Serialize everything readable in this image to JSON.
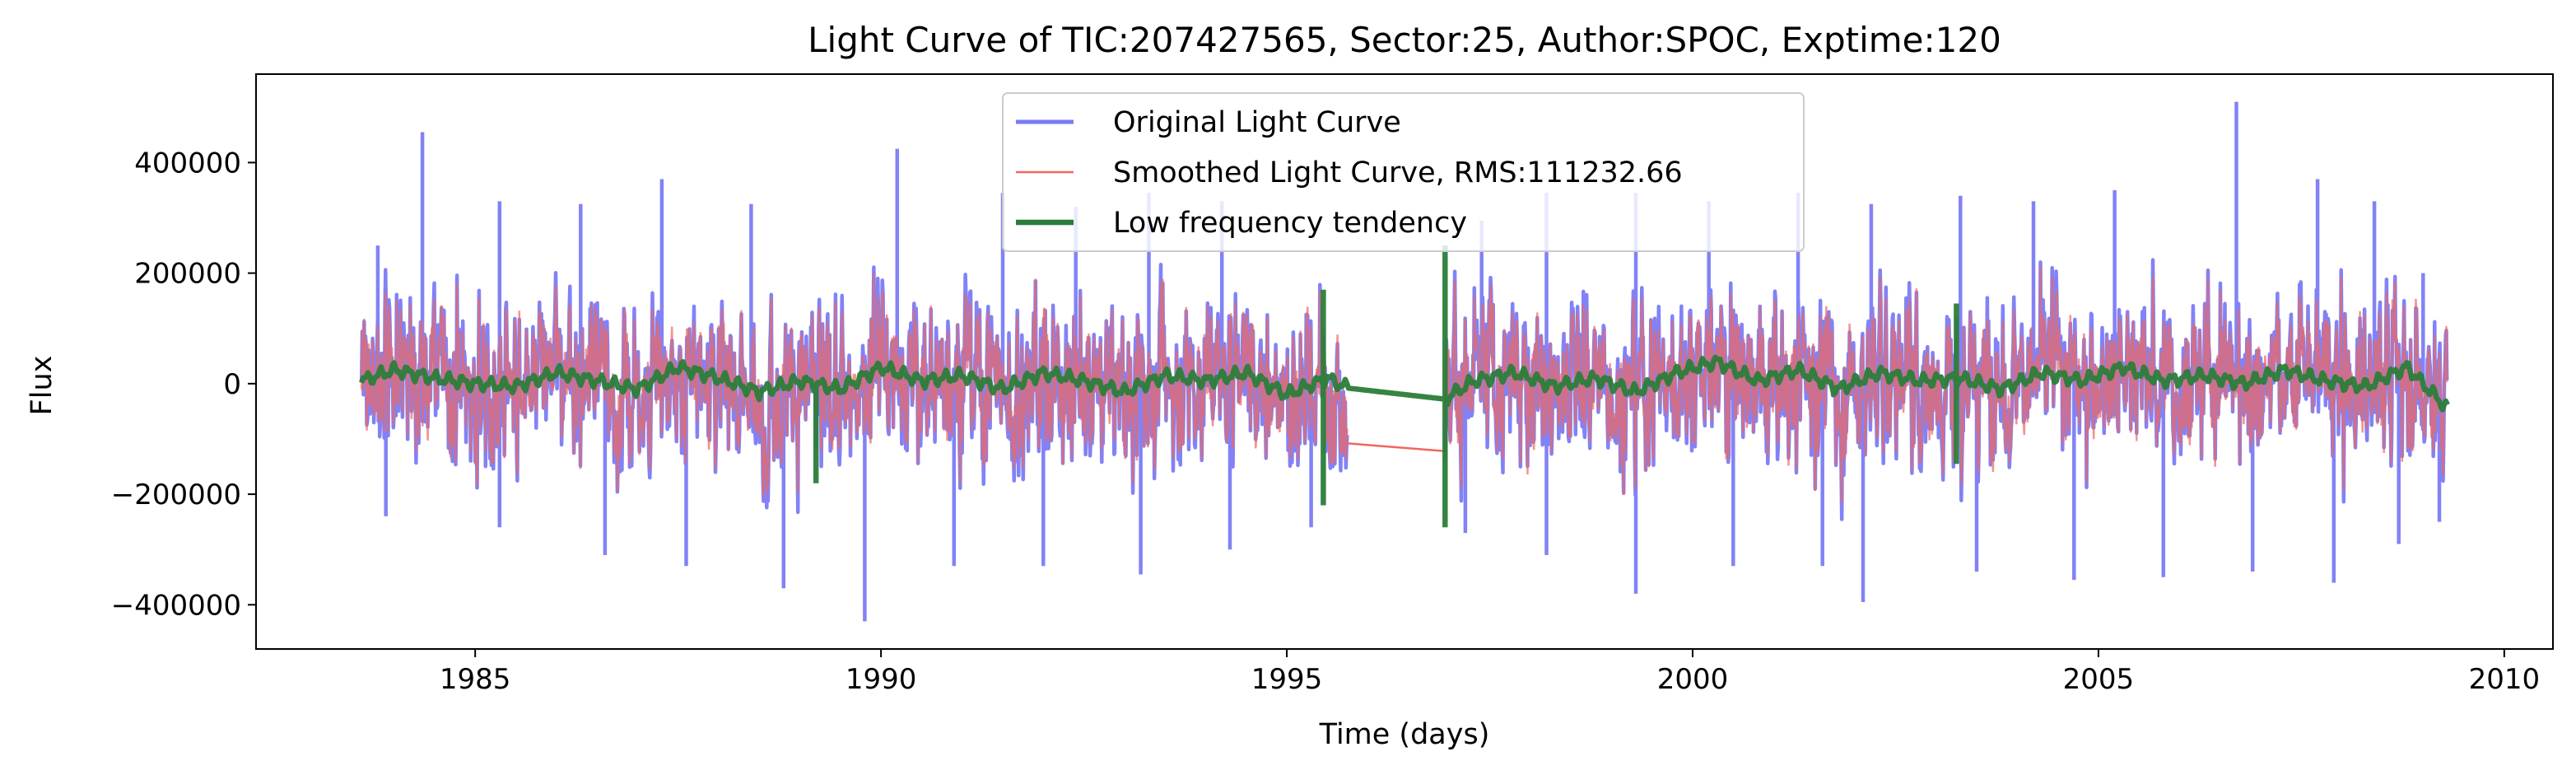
{
  "chart_data": {
    "type": "line",
    "title": "Light Curve of TIC:207427565, Sector:25, Author:SPOC, Exptime:120",
    "xlabel": "Time (days)",
    "ylabel": "Flux",
    "xlim": [
      1982.3,
      2010.6
    ],
    "ylim": [
      -480000,
      560000
    ],
    "xticks": [
      1985,
      1990,
      1995,
      2000,
      2005,
      2010
    ],
    "yticks": [
      -400000,
      -200000,
      0,
      200000,
      400000
    ],
    "xtick_labels": [
      "1985",
      "1990",
      "1995",
      "2000",
      "2005",
      "2010"
    ],
    "ytick_labels": [
      "−400000",
      "−200000",
      "0",
      "200000",
      "400000"
    ],
    "grid": false,
    "legend_position": "top-center",
    "segments": [
      [
        1983.6,
        1995.75
      ],
      [
        1996.95,
        2009.3
      ]
    ],
    "series": [
      {
        "name": "Original Light Curve",
        "role": "original",
        "color": "#7b7bf5",
        "typical_amplitude": 130000,
        "envelope": {
          "min": -430000,
          "max": 510000
        },
        "peaks": [
          {
            "x": 1983.8,
            "y": 250000
          },
          {
            "x": 1984.35,
            "y": 455000
          },
          {
            "x": 1985.3,
            "y": 330000
          },
          {
            "x": 1986.3,
            "y": 325000
          },
          {
            "x": 1987.3,
            "y": 370000
          },
          {
            "x": 1988.4,
            "y": 325000
          },
          {
            "x": 1990.2,
            "y": 425000
          },
          {
            "x": 1991.5,
            "y": 345000
          },
          {
            "x": 1992.4,
            "y": 320000
          },
          {
            "x": 1993.3,
            "y": 345000
          },
          {
            "x": 1994.2,
            "y": 330000
          },
          {
            "x": 1997.4,
            "y": 295000
          },
          {
            "x": 1998.2,
            "y": 345000
          },
          {
            "x": 1999.3,
            "y": 345000
          },
          {
            "x": 2000.2,
            "y": 330000
          },
          {
            "x": 2001.3,
            "y": 345000
          },
          {
            "x": 2002.2,
            "y": 325000
          },
          {
            "x": 2003.3,
            "y": 340000
          },
          {
            "x": 2004.2,
            "y": 330000
          },
          {
            "x": 2005.2,
            "y": 350000
          },
          {
            "x": 2006.7,
            "y": 510000
          },
          {
            "x": 2007.7,
            "y": 370000
          },
          {
            "x": 2008.4,
            "y": 330000
          },
          {
            "x": 2009.0,
            "y": 200000
          }
        ],
        "troughs": [
          {
            "x": 1983.9,
            "y": -240000
          },
          {
            "x": 1985.3,
            "y": -260000
          },
          {
            "x": 1986.6,
            "y": -310000
          },
          {
            "x": 1987.6,
            "y": -330000
          },
          {
            "x": 1988.8,
            "y": -370000
          },
          {
            "x": 1989.8,
            "y": -430000
          },
          {
            "x": 1990.9,
            "y": -330000
          },
          {
            "x": 1992.0,
            "y": -330000
          },
          {
            "x": 1993.2,
            "y": -345000
          },
          {
            "x": 1994.3,
            "y": -300000
          },
          {
            "x": 1995.3,
            "y": -260000
          },
          {
            "x": 1997.2,
            "y": -270000
          },
          {
            "x": 1998.2,
            "y": -310000
          },
          {
            "x": 1999.3,
            "y": -380000
          },
          {
            "x": 2000.5,
            "y": -330000
          },
          {
            "x": 2001.6,
            "y": -330000
          },
          {
            "x": 2002.1,
            "y": -395000
          },
          {
            "x": 2003.5,
            "y": -340000
          },
          {
            "x": 2004.7,
            "y": -355000
          },
          {
            "x": 2005.8,
            "y": -350000
          },
          {
            "x": 2006.9,
            "y": -340000
          },
          {
            "x": 2007.9,
            "y": -360000
          },
          {
            "x": 2008.7,
            "y": -290000
          },
          {
            "x": 2009.2,
            "y": -250000
          }
        ]
      },
      {
        "name": "Smoothed Light Curve, RMS:111232.66",
        "role": "smoothed",
        "color": "#f0665f",
        "gap_bridge": [
          [
            1995.75,
            -108000
          ],
          [
            1996.95,
            -122000
          ]
        ]
      },
      {
        "name": "Low frequency tendency",
        "role": "trend",
        "color": "#2b7d3a",
        "points": [
          [
            1983.6,
            5000
          ],
          [
            1984.0,
            25000
          ],
          [
            1984.5,
            10000
          ],
          [
            1985.0,
            0
          ],
          [
            1985.5,
            -5000
          ],
          [
            1986.0,
            20000
          ],
          [
            1986.5,
            5000
          ],
          [
            1987.0,
            -10000
          ],
          [
            1987.5,
            30000
          ],
          [
            1988.0,
            10000
          ],
          [
            1988.5,
            -15000
          ],
          [
            1989.0,
            5000
          ],
          [
            1989.5,
            -10000
          ],
          [
            1990.0,
            30000
          ],
          [
            1990.5,
            5000
          ],
          [
            1991.0,
            15000
          ],
          [
            1991.5,
            -10000
          ],
          [
            1992.0,
            20000
          ],
          [
            1992.5,
            5000
          ],
          [
            1993.0,
            -15000
          ],
          [
            1993.5,
            15000
          ],
          [
            1994.0,
            5000
          ],
          [
            1994.5,
            20000
          ],
          [
            1995.0,
            -20000
          ],
          [
            1995.5,
            10000
          ],
          [
            1995.75,
            -8000
          ],
          [
            1996.95,
            -28000
          ],
          [
            1997.3,
            5000
          ],
          [
            1997.8,
            20000
          ],
          [
            1998.3,
            -5000
          ],
          [
            1998.8,
            10000
          ],
          [
            1999.3,
            -15000
          ],
          [
            1999.8,
            20000
          ],
          [
            2000.3,
            40000
          ],
          [
            2000.8,
            5000
          ],
          [
            2001.3,
            25000
          ],
          [
            2001.8,
            -10000
          ],
          [
            2002.3,
            20000
          ],
          [
            2002.8,
            5000
          ],
          [
            2003.3,
            10000
          ],
          [
            2003.8,
            -10000
          ],
          [
            2004.3,
            20000
          ],
          [
            2004.8,
            5000
          ],
          [
            2005.3,
            30000
          ],
          [
            2005.8,
            5000
          ],
          [
            2006.3,
            15000
          ],
          [
            2006.8,
            0
          ],
          [
            2007.3,
            25000
          ],
          [
            2007.8,
            5000
          ],
          [
            2008.3,
            -5000
          ],
          [
            2008.8,
            30000
          ],
          [
            2009.3,
            -45000
          ]
        ],
        "spikes": [
          {
            "x": 1989.2,
            "min": -180000,
            "max": 0
          },
          {
            "x": 1995.45,
            "min": -220000,
            "max": 170000
          },
          {
            "x": 1996.95,
            "min": -260000,
            "max": 250000
          },
          {
            "x": 2003.25,
            "min": -145000,
            "max": 145000
          }
        ]
      }
    ]
  }
}
